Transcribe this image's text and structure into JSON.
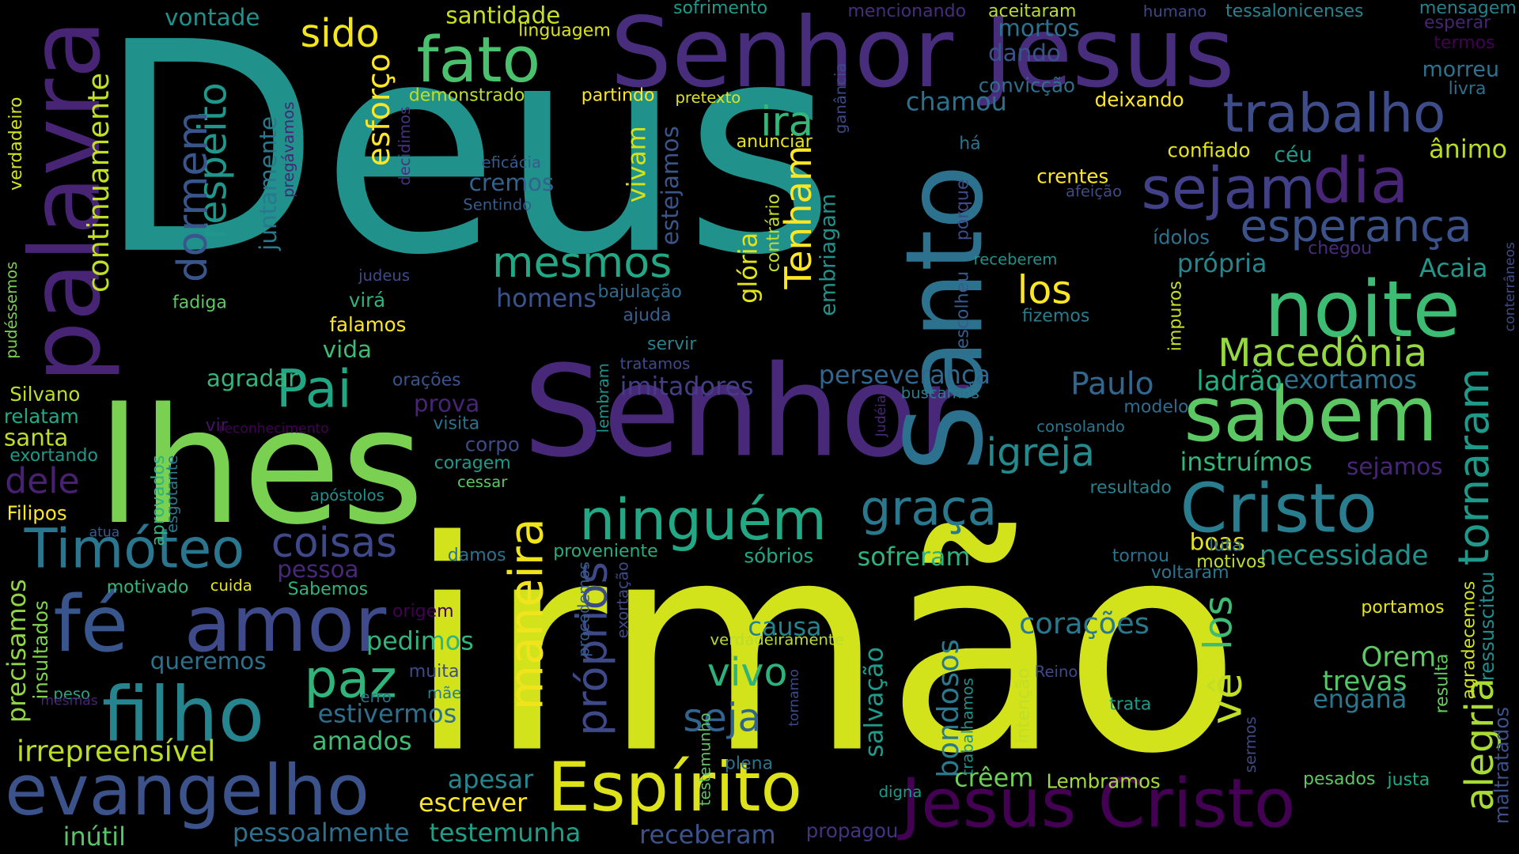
{
  "words": [
    {
      "text": "Deus",
      "color": "#21918c"
    },
    {
      "text": "irmão",
      "color": "#d2e21b"
    },
    {
      "text": "Senhor Jesus",
      "color": "#472d7b"
    },
    {
      "text": "Senhor",
      "color": "#482878"
    },
    {
      "text": "lhes",
      "color": "#7ad151"
    },
    {
      "text": "Jesus Cristo",
      "color": "#440154"
    },
    {
      "text": "evangelho",
      "color": "#3b528b"
    },
    {
      "text": "fé",
      "color": "#39568c"
    },
    {
      "text": "amor",
      "color": "#3e4a89"
    },
    {
      "text": "palavra",
      "color": "#482475"
    },
    {
      "text": "Espírito",
      "color": "#dde318"
    },
    {
      "text": "Santo",
      "color": "#2c728e"
    },
    {
      "text": "noite",
      "color": "#3dbc74"
    },
    {
      "text": "sabem",
      "color": "#5cc863"
    },
    {
      "text": "Cristo",
      "color": "#287d8e"
    },
    {
      "text": "filho",
      "color": "#25848e"
    },
    {
      "text": "fato",
      "color": "#4ac16d"
    },
    {
      "text": "trabalho",
      "color": "#3e4c8a"
    },
    {
      "text": "dia",
      "color": "#482576"
    },
    {
      "text": "sejam",
      "color": "#424086"
    },
    {
      "text": "esperança",
      "color": "#3b528b"
    },
    {
      "text": "Timóteo",
      "color": "#2a768e"
    },
    {
      "text": "ninguém",
      "color": "#22a884"
    },
    {
      "text": "graça",
      "color": "#2a788e"
    },
    {
      "text": "maneira",
      "color": "#f0e51c"
    },
    {
      "text": "paz",
      "color": "#2fb47c"
    },
    {
      "text": "Pai",
      "color": "#22a785"
    },
    {
      "text": "mesmos",
      "color": "#22a884"
    },
    {
      "text": "Macedônia",
      "color": "#95d840"
    },
    {
      "text": "igreja",
      "color": "#238a8d"
    },
    {
      "text": "alegria",
      "color": "#a8db34"
    },
    {
      "text": "tornaram",
      "color": "#1f9a8a"
    },
    {
      "text": "vê",
      "color": "#c0df25"
    },
    {
      "text": "los",
      "color": "#3dbc74"
    },
    {
      "text": "los",
      "color": "#fde725"
    },
    {
      "text": "próprios",
      "color": "#3e4989"
    },
    {
      "text": "vivo",
      "color": "#2db27d"
    },
    {
      "text": "seja",
      "color": "#32658e"
    },
    {
      "text": "coisas",
      "color": "#3f4889"
    },
    {
      "text": "ira",
      "color": "#35b779"
    },
    {
      "text": "Tenham",
      "color": "#fde725"
    },
    {
      "text": "respeito",
      "color": "#1f988b"
    },
    {
      "text": "dormem",
      "color": "#39568c"
    },
    {
      "text": "esforço",
      "color": "#fde725"
    },
    {
      "text": "continuamente",
      "color": "#c2df23"
    },
    {
      "text": "sido",
      "color": "#f4e61e"
    },
    {
      "text": "dele",
      "color": "#482173"
    },
    {
      "text": "irrepreensível",
      "color": "#bade28"
    },
    {
      "text": "Paulo",
      "color": "#31668e"
    },
    {
      "text": "ladrão",
      "color": "#26ad81"
    },
    {
      "text": "exortamos",
      "color": "#2c718e"
    },
    {
      "text": "Orem",
      "color": "#5ec962"
    },
    {
      "text": "trevas",
      "color": "#52c569"
    },
    {
      "text": "enganá",
      "color": "#2a788e"
    },
    {
      "text": "bondosos",
      "color": "#297a8e"
    },
    {
      "text": "salvação",
      "color": "#1e9c89"
    },
    {
      "text": "corações",
      "color": "#29798e"
    },
    {
      "text": "causa",
      "color": "#25838e"
    },
    {
      "text": "pedimos",
      "color": "#31b57b"
    },
    {
      "text": "queremos",
      "color": "#2c728e"
    },
    {
      "text": "precisamos",
      "color": "#90d743"
    },
    {
      "text": "insultados",
      "color": "#7fd34e"
    },
    {
      "text": "estivermos",
      "color": "#2e6f8e"
    },
    {
      "text": "amados",
      "color": "#3fbc73"
    },
    {
      "text": "apesar",
      "color": "#24878e"
    },
    {
      "text": "escrever",
      "color": "#fde725"
    },
    {
      "text": "crêem",
      "color": "#6ece58"
    },
    {
      "text": "testemunha",
      "color": "#1f9f88"
    },
    {
      "text": "pessoalmente",
      "color": "#2d718e"
    },
    {
      "text": "inútil",
      "color": "#56c667"
    },
    {
      "text": "receberam",
      "color": "#3b528b"
    },
    {
      "text": "propagou",
      "color": "#46337f"
    },
    {
      "text": "Lembramos",
      "color": "#a2da37"
    },
    {
      "text": "resulta",
      "color": "#63cb5f"
    },
    {
      "text": "agradecemos",
      "color": "#d0e11c"
    },
    {
      "text": "ressuscitou",
      "color": "#228c8d"
    },
    {
      "text": "maltratados",
      "color": "#3b518b"
    },
    {
      "text": "Acaia",
      "color": "#1f998a"
    },
    {
      "text": "própria",
      "color": "#24868e"
    },
    {
      "text": "necessidade",
      "color": "#21918c"
    },
    {
      "text": "sofreram",
      "color": "#2eb37c"
    },
    {
      "text": "boas",
      "color": "#e5e419"
    },
    {
      "text": "motivos",
      "color": "#bddf26"
    },
    {
      "text": "luta",
      "color": "#2c738e"
    },
    {
      "text": "tornou",
      "color": "#2d708e"
    },
    {
      "text": "voltaram",
      "color": "#2b758e"
    },
    {
      "text": "sejamos",
      "color": "#482677"
    },
    {
      "text": "instruímos",
      "color": "#32b67a"
    },
    {
      "text": "resultado",
      "color": "#26818e"
    },
    {
      "text": "modelo",
      "color": "#2f6c8e"
    },
    {
      "text": "consolando",
      "color": "#2a778e"
    },
    {
      "text": "perseverança",
      "color": "#31668e"
    },
    {
      "text": "buscamos",
      "color": "#287c8e"
    },
    {
      "text": "imitadores",
      "color": "#433e85"
    },
    {
      "text": "homens",
      "color": "#3a538b"
    },
    {
      "text": "bajulação",
      "color": "#2f6b8e"
    },
    {
      "text": "ajuda",
      "color": "#355f8d"
    },
    {
      "text": "servir",
      "color": "#27808e"
    },
    {
      "text": "tratamos",
      "color": "#3e4a89"
    },
    {
      "text": "vivam",
      "color": "#d2e21b"
    },
    {
      "text": "estejamos",
      "color": "#39558c"
    },
    {
      "text": "cremos",
      "color": "#33638d"
    },
    {
      "text": "Sentindo",
      "color": "#375b8d"
    },
    {
      "text": "eficácia",
      "color": "#365c8d"
    },
    {
      "text": "anunciar",
      "color": "#e5e419"
    },
    {
      "text": "glória",
      "color": "#e2e418"
    },
    {
      "text": "contrário",
      "color": "#c0df25"
    },
    {
      "text": "embriagam",
      "color": "#20928c"
    },
    {
      "text": "ganância",
      "color": "#3e4a89"
    },
    {
      "text": "chamou",
      "color": "#2c718e"
    },
    {
      "text": "convicção",
      "color": "#2e6f8e"
    },
    {
      "text": "deixando",
      "color": "#fde725"
    },
    {
      "text": "confiado",
      "color": "#e5e419"
    },
    {
      "text": "crentes",
      "color": "#fde725"
    },
    {
      "text": "afeição",
      "color": "#3e4a89"
    },
    {
      "text": "ídolos",
      "color": "#2c728e"
    },
    {
      "text": "chegou",
      "color": "#472d7b"
    },
    {
      "text": "receberem",
      "color": "#20928c"
    },
    {
      "text": "fizemos",
      "color": "#287c8e"
    },
    {
      "text": "escolheu",
      "color": "#365c8d"
    },
    {
      "text": "porque",
      "color": "#3e4a89"
    },
    {
      "text": "há",
      "color": "#2c728e"
    },
    {
      "text": "céu",
      "color": "#1f9a8a"
    },
    {
      "text": "ânimo",
      "color": "#bade28"
    },
    {
      "text": "morreu",
      "color": "#2c728e"
    },
    {
      "text": "livra",
      "color": "#2e6f8e"
    },
    {
      "text": "termos",
      "color": "#440154"
    },
    {
      "text": "esperar",
      "color": "#482475"
    },
    {
      "text": "mensagem",
      "color": "#26818e"
    },
    {
      "text": "tessalonicenses",
      "color": "#25848e"
    },
    {
      "text": "humano",
      "color": "#3e4989"
    },
    {
      "text": "aceitaram",
      "color": "#b8de29"
    },
    {
      "text": "mencionando",
      "color": "#472d7b"
    },
    {
      "text": "sofrimento",
      "color": "#1f9a8a"
    },
    {
      "text": "mortos",
      "color": "#2c728e"
    },
    {
      "text": "dando",
      "color": "#3a538b"
    },
    {
      "text": "santidade",
      "color": "#c8e020"
    },
    {
      "text": "linguagem",
      "color": "#d8e219"
    },
    {
      "text": "vontade",
      "color": "#21918c"
    },
    {
      "text": "demonstrado",
      "color": "#bddf26"
    },
    {
      "text": "partindo",
      "color": "#fde725"
    },
    {
      "text": "pretexto",
      "color": "#e2e418"
    },
    {
      "text": "decidimos",
      "color": "#46337f"
    },
    {
      "text": "pregávamos",
      "color": "#482475"
    },
    {
      "text": "juntamente",
      "color": "#2a788e"
    },
    {
      "text": "verdadeiro",
      "color": "#d2e21b"
    },
    {
      "text": "pudéssemos",
      "color": "#7ad151"
    },
    {
      "text": "fadiga",
      "color": "#5ec962"
    },
    {
      "text": "judeus",
      "color": "#3e4a89"
    },
    {
      "text": "virá",
      "color": "#2fb47c"
    },
    {
      "text": "falamos",
      "color": "#fde725"
    },
    {
      "text": "vida",
      "color": "#3dbc74"
    },
    {
      "text": "agradar",
      "color": "#32b67a"
    },
    {
      "text": "orações",
      "color": "#3a538b"
    },
    {
      "text": "Silvano",
      "color": "#bddf26"
    },
    {
      "text": "relatam",
      "color": "#22a884"
    },
    {
      "text": "santa",
      "color": "#bddf26"
    },
    {
      "text": "exortando",
      "color": "#1f998a"
    },
    {
      "text": "Filipos",
      "color": "#fde725"
    },
    {
      "text": "aprovados",
      "color": "#2fb47c"
    },
    {
      "text": "esgotante",
      "color": "#297a8e"
    },
    {
      "text": "vir",
      "color": "#471365"
    },
    {
      "text": "reconhecimento",
      "color": "#440154"
    },
    {
      "text": "prova",
      "color": "#482475"
    },
    {
      "text": "visita",
      "color": "#2c728e"
    },
    {
      "text": "corpo",
      "color": "#3e4a89"
    },
    {
      "text": "coragem",
      "color": "#1f9a8a"
    },
    {
      "text": "cessar",
      "color": "#5cc863"
    },
    {
      "text": "apóstolos",
      "color": "#21918c"
    },
    {
      "text": "atua",
      "color": "#365c8d"
    },
    {
      "text": "pessoa",
      "color": "#482878"
    },
    {
      "text": "damos",
      "color": "#2c728e"
    },
    {
      "text": "proveniente",
      "color": "#26ad81"
    },
    {
      "text": "sóbrios",
      "color": "#22a884"
    },
    {
      "text": "motivado",
      "color": "#35b779"
    },
    {
      "text": "cuida",
      "color": "#e5e419"
    },
    {
      "text": "Sabemos",
      "color": "#2fb47c"
    },
    {
      "text": "origem",
      "color": "#440154"
    },
    {
      "text": "exortação",
      "color": "#3e4a89"
    },
    {
      "text": "procedemos",
      "color": "#365c8d"
    },
    {
      "text": "muita",
      "color": "#3e4a89"
    },
    {
      "text": "mãe",
      "color": "#287c8e"
    },
    {
      "text": "erro",
      "color": "#2c728e"
    },
    {
      "text": "peso",
      "color": "#22a884"
    },
    {
      "text": "mesmas",
      "color": "#482475"
    },
    {
      "text": "lembram",
      "color": "#20928c"
    },
    {
      "text": "testemunho",
      "color": "#5ec962"
    },
    {
      "text": "Judéia",
      "color": "#482878"
    },
    {
      "text": "tornamo",
      "color": "#3e4a89"
    },
    {
      "text": "plena",
      "color": "#2c728e"
    },
    {
      "text": "digna",
      "color": "#1f9a8a"
    },
    {
      "text": "trabalhamos",
      "color": "#21918c"
    },
    {
      "text": "verdadeiramente",
      "color": "#b8de29"
    },
    {
      "text": "intenção",
      "color": "#c0df25"
    },
    {
      "text": "Reino",
      "color": "#3e4a89"
    },
    {
      "text": "portamos",
      "color": "#e5e419"
    },
    {
      "text": "trata",
      "color": "#1f9a8a"
    },
    {
      "text": "sermos",
      "color": "#3e4a89"
    },
    {
      "text": "pesados",
      "color": "#5cc863"
    },
    {
      "text": "justa",
      "color": "#22a884"
    },
    {
      "text": "impuros",
      "color": "#c8e020"
    },
    {
      "text": "conterrâneos",
      "color": "#3e4a89"
    }
  ]
}
